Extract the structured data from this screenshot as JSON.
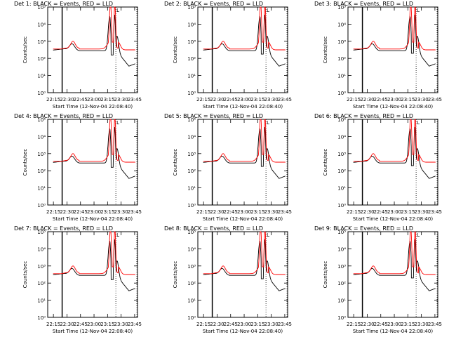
{
  "chart_data": [
    {
      "type": "line",
      "title": "Det 1",
      "legend_text": "BLACK = Events, RED = LLD",
      "ylabel": "Counts/sec",
      "xlabel": "Start Time (12-Nov-04 22:08:40)",
      "marker": "L",
      "y_scale": "log",
      "ylim": [
        1,
        100000
      ],
      "y_ticks": [
        "10⁰",
        "10¹",
        "10²",
        "10³",
        "10⁴",
        "10⁵"
      ],
      "x_ticks": [
        "22:15",
        "22:30",
        "22:45",
        "23:00",
        "23:15",
        "23:30",
        "23:45"
      ],
      "series": [
        {
          "name": "Events",
          "color": "#000000"
        },
        {
          "name": "LLD",
          "color": "#ff0000"
        }
      ]
    },
    {
      "type": "line",
      "title": "Det 2",
      "legend_text": "BLACK = Events, RED = LLD",
      "ylabel": "Counts/sec",
      "xlabel": "Start Time (12-Nov-04 22:08:40)",
      "marker": "L",
      "y_scale": "log",
      "ylim": [
        1,
        100000
      ],
      "y_ticks": [
        "10⁰",
        "10¹",
        "10²",
        "10³",
        "10⁴",
        "10⁵"
      ],
      "x_ticks": [
        "22:15",
        "22:30",
        "22:45",
        "23:00",
        "23:15",
        "23:30",
        "23:45"
      ],
      "series": [
        {
          "name": "Events",
          "color": "#000000"
        },
        {
          "name": "LLD",
          "color": "#ff0000"
        }
      ]
    },
    {
      "type": "line",
      "title": "Det 3",
      "legend_text": "BLACK = Events, RED = LLD",
      "ylabel": "Counts/sec",
      "xlabel": "Start Time (12-Nov-04 22:08:40)",
      "marker": "L",
      "y_scale": "log",
      "ylim": [
        1,
        100000
      ],
      "y_ticks": [
        "10⁰",
        "10¹",
        "10²",
        "10³",
        "10⁴",
        "10⁵"
      ],
      "x_ticks": [
        "22:15",
        "22:30",
        "22:45",
        "23:00",
        "23:15",
        "23:30",
        "23:45"
      ],
      "series": [
        {
          "name": "Events",
          "color": "#000000"
        },
        {
          "name": "LLD",
          "color": "#ff0000"
        }
      ]
    },
    {
      "type": "line",
      "title": "Det 4",
      "legend_text": "BLACK = Events, RED = LLD",
      "ylabel": "Counts/sec",
      "xlabel": "Start Time (12-Nov-04 22:08:40)",
      "marker": "L",
      "y_scale": "log",
      "ylim": [
        1,
        100000
      ],
      "y_ticks": [
        "10⁰",
        "10¹",
        "10²",
        "10³",
        "10⁴",
        "10⁵"
      ],
      "x_ticks": [
        "22:15",
        "22:30",
        "22:45",
        "23:00",
        "23:15",
        "23:30",
        "23:45"
      ],
      "series": [
        {
          "name": "Events",
          "color": "#000000"
        },
        {
          "name": "LLD",
          "color": "#ff0000"
        }
      ]
    },
    {
      "type": "line",
      "title": "Det 5",
      "legend_text": "BLACK = Events, RED = LLD",
      "ylabel": "Counts/sec",
      "xlabel": "Start Time (12-Nov-04 22:08:40)",
      "marker": "L",
      "y_scale": "log",
      "ylim": [
        1,
        100000
      ],
      "y_ticks": [
        "10⁰",
        "10¹",
        "10²",
        "10³",
        "10⁴",
        "10⁵"
      ],
      "x_ticks": [
        "22:15",
        "22:30",
        "22:45",
        "23:00",
        "23:15",
        "23:30",
        "23:45"
      ],
      "series": [
        {
          "name": "Events",
          "color": "#000000"
        },
        {
          "name": "LLD",
          "color": "#ff0000"
        }
      ]
    },
    {
      "type": "line",
      "title": "Det 6",
      "legend_text": "BLACK = Events, RED = LLD",
      "ylabel": "Counts/sec",
      "xlabel": "Start Time (12-Nov-04 22:08:40)",
      "marker": "L",
      "y_scale": "log",
      "ylim": [
        1,
        100000
      ],
      "y_ticks": [
        "10⁰",
        "10¹",
        "10²",
        "10³",
        "10⁴",
        "10⁵"
      ],
      "x_ticks": [
        "22:15",
        "22:30",
        "22:45",
        "23:00",
        "23:15",
        "23:30",
        "23:45"
      ],
      "series": [
        {
          "name": "Events",
          "color": "#000000"
        },
        {
          "name": "LLD",
          "color": "#ff0000"
        }
      ]
    },
    {
      "type": "line",
      "title": "Det 7",
      "legend_text": "BLACK = Events, RED = LLD",
      "ylabel": "Counts/sec",
      "xlabel": "Start Time (12-Nov-04 22:08:40)",
      "marker": "L",
      "y_scale": "log",
      "ylim": [
        1,
        100000
      ],
      "y_ticks": [
        "10⁰",
        "10¹",
        "10²",
        "10³",
        "10⁴",
        "10⁵"
      ],
      "x_ticks": [
        "22:15",
        "22:30",
        "22:45",
        "23:00",
        "23:15",
        "23:30",
        "23:45"
      ],
      "series": [
        {
          "name": "Events",
          "color": "#000000"
        },
        {
          "name": "LLD",
          "color": "#ff0000"
        }
      ]
    },
    {
      "type": "line",
      "title": "Det 8",
      "legend_text": "BLACK = Events, RED = LLD",
      "ylabel": "Counts/sec",
      "xlabel": "Start Time (12-Nov-04 22:08:40)",
      "marker": "L",
      "y_scale": "log",
      "ylim": [
        1,
        100000
      ],
      "y_ticks": [
        "10⁰",
        "10¹",
        "10²",
        "10³",
        "10⁴",
        "10⁵"
      ],
      "x_ticks": [
        "22:15",
        "22:30",
        "22:45",
        "23:00",
        "23:15",
        "23:30",
        "23:45"
      ],
      "series": [
        {
          "name": "Events",
          "color": "#000000"
        },
        {
          "name": "LLD",
          "color": "#ff0000"
        }
      ]
    },
    {
      "type": "line",
      "title": "Det 9",
      "legend_text": "BLACK = Events, RED = LLD",
      "ylabel": "Counts/sec",
      "xlabel": "Start Time (12-Nov-04 22:08:40)",
      "marker": "L",
      "y_scale": "log",
      "ylim": [
        1,
        100000
      ],
      "y_ticks": [
        "10⁰",
        "10¹",
        "10²",
        "10³",
        "10⁴",
        "10⁵"
      ],
      "x_ticks": [
        "22:15",
        "22:30",
        "22:45",
        "23:00",
        "23:15",
        "23:30",
        "23:45"
      ],
      "series": [
        {
          "name": "Events",
          "color": "#000000"
        },
        {
          "name": "LLD",
          "color": "#ff0000"
        }
      ]
    }
  ]
}
